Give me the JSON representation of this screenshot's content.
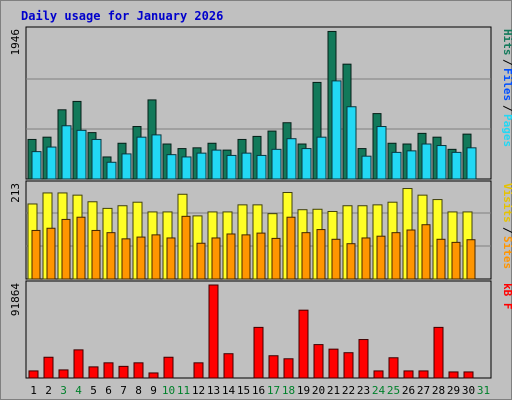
{
  "chart_data": [
    {
      "type": "bar",
      "title": "Daily usage for January 2026",
      "categories": [
        "1",
        "2",
        "3",
        "4",
        "5",
        "6",
        "7",
        "8",
        "9",
        "10",
        "11",
        "12",
        "13",
        "14",
        "15",
        "16",
        "17",
        "18",
        "19",
        "20",
        "21",
        "22",
        "23",
        "24",
        "25",
        "26",
        "27",
        "28",
        "29",
        "30",
        "31"
      ],
      "weekend_days": [
        "3",
        "4",
        "10",
        "11",
        "17",
        "18",
        "24",
        "25",
        "31"
      ],
      "y_tick_label": "1946",
      "ylim": [
        0,
        1946
      ],
      "series": [
        {
          "name": "Hits",
          "color": "#12795a",
          "values": [
            520,
            550,
            910,
            1020,
            610,
            290,
            470,
            690,
            1040,
            460,
            400,
            410,
            470,
            380,
            520,
            560,
            630,
            740,
            460,
            1270,
            1940,
            1510,
            400,
            860,
            470,
            460,
            600,
            550,
            390,
            590,
            0
          ]
        },
        {
          "name": "Files",
          "color": "#004fff",
          "values": [
            280,
            310,
            340,
            370,
            360,
            200,
            250,
            270,
            250,
            220,
            210,
            230,
            250,
            230,
            220,
            210,
            230,
            280,
            260,
            300,
            380,
            330,
            200,
            330,
            240,
            230,
            230,
            270,
            240,
            240,
            0
          ]
        },
        {
          "name": "Pages",
          "color": "#22d8f4",
          "values": [
            360,
            420,
            700,
            640,
            520,
            220,
            330,
            550,
            580,
            320,
            290,
            340,
            380,
            310,
            340,
            310,
            390,
            530,
            400,
            550,
            1290,
            950,
            300,
            690,
            350,
            370,
            460,
            440,
            350,
            410,
            0
          ]
        }
      ]
    },
    {
      "type": "bar",
      "y_tick_label": "213",
      "ylim": [
        0,
        213
      ],
      "series": [
        {
          "name": "Visits",
          "color": "#ffff26",
          "values": [
            170,
            195,
            195,
            190,
            175,
            160,
            166,
            174,
            152,
            152,
            192,
            143,
            152,
            152,
            168,
            168,
            148,
            196,
            157,
            158,
            153,
            166,
            166,
            168,
            174,
            205,
            190,
            180,
            152,
            152,
            0
          ]
        },
        {
          "name": "Sites",
          "color": "#ff9500",
          "values": [
            110,
            115,
            135,
            140,
            110,
            105,
            91,
            95,
            100,
            93,
            142,
            81,
            93,
            102,
            100,
            104,
            92,
            140,
            105,
            112,
            90,
            80,
            93,
            97,
            105,
            111,
            123,
            90,
            83,
            89,
            0
          ]
        }
      ]
    },
    {
      "type": "bar",
      "y_tick_label": "91864",
      "ylim": [
        0,
        91864
      ],
      "series": [
        {
          "name": "kB F",
          "color": "#ff0000",
          "values": [
            7000,
            20500,
            8000,
            27800,
            11000,
            15000,
            11500,
            15000,
            5000,
            20500,
            0,
            15000,
            91864,
            24000,
            0,
            50000,
            22000,
            19000,
            67000,
            33000,
            28500,
            25000,
            38000,
            7000,
            20000,
            7000,
            7000,
            50000,
            6000,
            6000,
            0
          ]
        }
      ]
    }
  ]
}
